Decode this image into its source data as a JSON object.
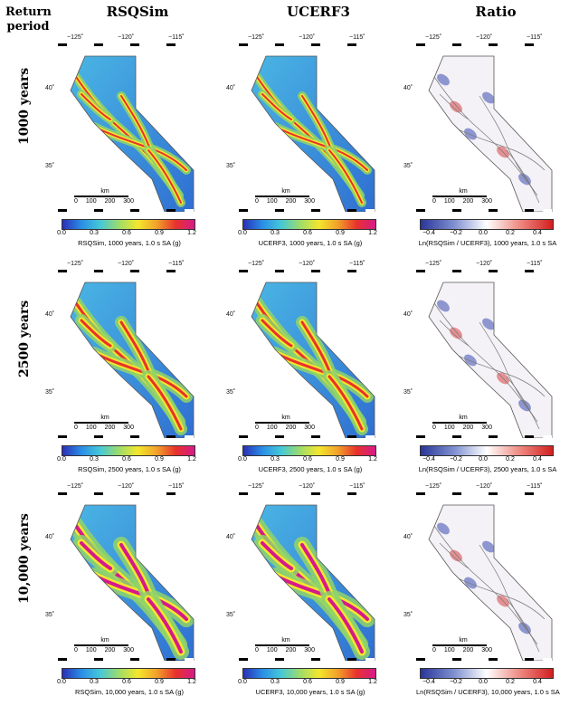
{
  "corner_label": [
    "Return",
    "period"
  ],
  "columns": [
    {
      "id": "rsqsim",
      "title": "RSQSim",
      "type": "hazard"
    },
    {
      "id": "ucerf3",
      "title": "UCERF3",
      "type": "hazard"
    },
    {
      "id": "ratio",
      "title": "Ratio",
      "type": "ratio"
    }
  ],
  "rows": [
    {
      "label": "1000 years",
      "intensity": 1
    },
    {
      "label": "2500 years",
      "intensity": 2
    },
    {
      "label": "10,000 years",
      "intensity": 3
    }
  ],
  "lon_ticks": [
    "−125˚",
    "−120˚",
    "−115˚"
  ],
  "lat_ticks": [
    "40˚",
    "35˚"
  ],
  "scale_bar": {
    "unit": "km",
    "ticks": [
      "0",
      "100",
      "200",
      "300"
    ]
  },
  "hazard_ticks": [
    "0.0",
    "0.3",
    "0.6",
    "0.9",
    "1.2"
  ],
  "ratio_ticks": [
    "−0.4",
    "−0.2",
    "0.0",
    "0.2",
    "0.4"
  ],
  "colors": {
    "hazard_gradient": [
      "#2b2fb5",
      "#2a8de6",
      "#45c8d8",
      "#9ddc6a",
      "#f3e72d",
      "#f2a12a",
      "#e8322c",
      "#d61a8a"
    ],
    "ratio_gradient": [
      "#2a3598",
      "#7e8fd0",
      "#ffffff",
      "#ee8a82",
      "#d21e1e"
    ],
    "fault": "#e8322c",
    "fault_high": "#d61a8a"
  },
  "captions": [
    [
      "RSQSim, 1000 years, 1.0 s SA (g)",
      "UCERF3, 1000 years, 1.0 s SA (g)",
      "Ln(RSQSim / UCERF3), 1000 years, 1.0 s SA"
    ],
    [
      "RSQSim, 2500 years, 1.0 s SA (g)",
      "UCERF3, 2500 years, 1.0 s SA (g)",
      "Ln(RSQSim / UCERF3), 2500 years, 1.0 s SA"
    ],
    [
      "RSQSim, 10,000 years, 1.0 s SA (g)",
      "UCERF3, 10,000 years, 1.0 s SA (g)",
      "Ln(RSQSim / UCERF3), 10,000 years, 1.0 s SA"
    ]
  ]
}
